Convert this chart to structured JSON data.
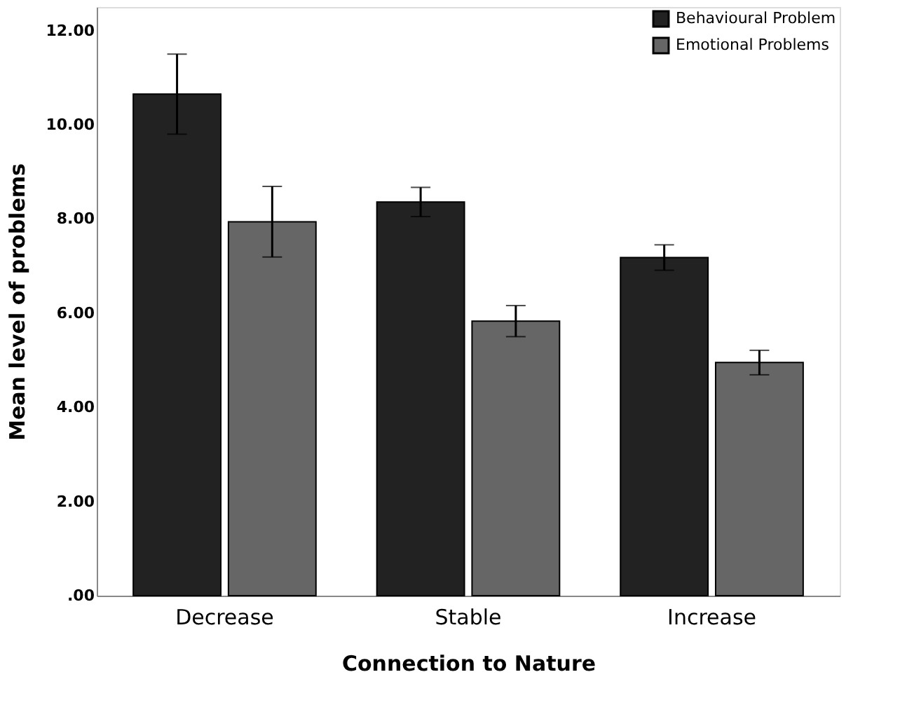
{
  "chart_data": {
    "type": "bar",
    "xlabel": "Connection to Nature",
    "ylabel": "Mean level of problems",
    "categories": [
      "Decrease",
      "Stable",
      "Increase"
    ],
    "series": [
      {
        "name": "Behavioural Problem",
        "color": "#222222",
        "values": [
          10.65,
          8.36,
          7.18
        ],
        "errors": [
          0.85,
          0.31,
          0.27
        ]
      },
      {
        "name": "Emotional Problems",
        "color": "#666666",
        "values": [
          7.94,
          5.83,
          4.95
        ],
        "errors": [
          0.75,
          0.33,
          0.26
        ]
      }
    ],
    "ylim": [
      0,
      12.5
    ],
    "yticks": [
      {
        "value": 0,
        "label": ".00"
      },
      {
        "value": 2,
        "label": "2.00"
      },
      {
        "value": 4,
        "label": "4.00"
      },
      {
        "value": 6,
        "label": "6.00"
      },
      {
        "value": 8,
        "label": "8.00"
      },
      {
        "value": 10,
        "label": "10.00"
      },
      {
        "value": 12,
        "label": "12.00"
      }
    ],
    "grid": false,
    "legend": "top right"
  }
}
